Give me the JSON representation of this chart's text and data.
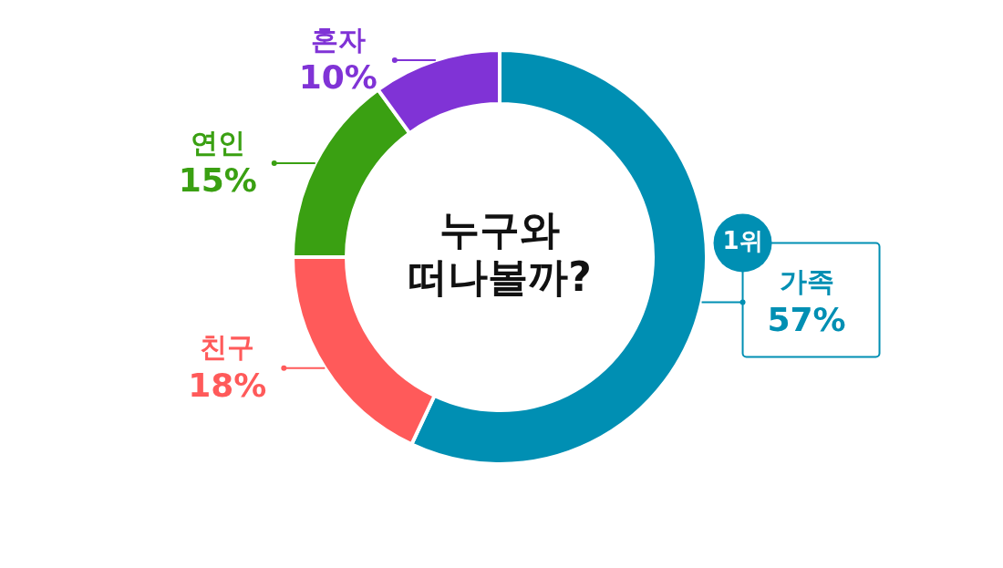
{
  "chart_data": {
    "type": "donut",
    "title": "누구와 떠나볼까?",
    "categories": [
      "가족",
      "친구",
      "연인",
      "혼자"
    ],
    "values": [
      57,
      18,
      15,
      10
    ],
    "colors": [
      "#008fb3",
      "#ff5a5a",
      "#3aa012",
      "#8033d6"
    ],
    "value_labels": [
      "57%",
      "18%",
      "15%",
      "10%"
    ],
    "annotations": [
      {
        "text": "1위",
        "x": "가족"
      }
    ],
    "legend": false
  }
}
